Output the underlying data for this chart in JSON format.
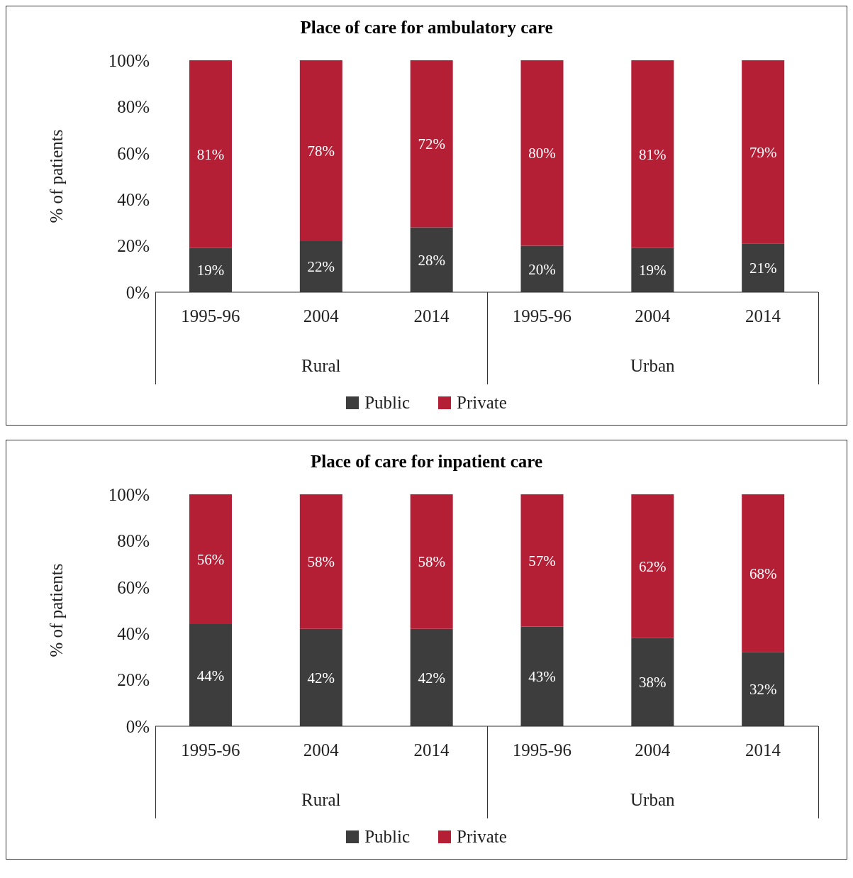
{
  "chart_data": [
    {
      "type": "bar",
      "title": "Place of care for ambulatory care",
      "ylabel": "% of patients",
      "categories": [
        "1995-96",
        "2004",
        "2014",
        "1995-96",
        "2004",
        "2014"
      ],
      "annotations": [
        "Rural",
        "Urban"
      ],
      "stacked": true,
      "legend": "bottom",
      "ylim": [
        0,
        100
      ],
      "yticks": [
        {
          "value": 0,
          "label": "0%"
        },
        {
          "value": 20,
          "label": "20%"
        },
        {
          "value": 40,
          "label": "40%"
        },
        {
          "value": 60,
          "label": "60%"
        },
        {
          "value": 80,
          "label": "80%"
        },
        {
          "value": 100,
          "label": "100%"
        }
      ],
      "series": [
        {
          "name": "Public",
          "color": "#3d3d3d",
          "values": [
            19,
            22,
            28,
            20,
            19,
            21
          ],
          "value_labels": [
            "19%",
            "22%",
            "28%",
            "20%",
            "19%",
            "21%"
          ]
        },
        {
          "name": "Private",
          "color": "#b51f36",
          "values": [
            81,
            78,
            72,
            80,
            81,
            79
          ],
          "value_labels": [
            "81%",
            "78%",
            "72%",
            "80%",
            "81%",
            "79%"
          ]
        }
      ]
    },
    {
      "type": "bar",
      "title": "Place of care for inpatient care",
      "ylabel": "% of patients",
      "categories": [
        "1995-96",
        "2004",
        "2014",
        "1995-96",
        "2004",
        "2014"
      ],
      "annotations": [
        "Rural",
        "Urban"
      ],
      "stacked": true,
      "legend": "bottom",
      "ylim": [
        0,
        100
      ],
      "yticks": [
        {
          "value": 0,
          "label": "0%"
        },
        {
          "value": 20,
          "label": "20%"
        },
        {
          "value": 40,
          "label": "40%"
        },
        {
          "value": 60,
          "label": "60%"
        },
        {
          "value": 80,
          "label": "80%"
        },
        {
          "value": 100,
          "label": "100%"
        }
      ],
      "series": [
        {
          "name": "Public",
          "color": "#3d3d3d",
          "values": [
            44,
            42,
            42,
            43,
            38,
            32
          ],
          "value_labels": [
            "44%",
            "42%",
            "42%",
            "43%",
            "38%",
            "32%"
          ]
        },
        {
          "name": "Private",
          "color": "#b51f36",
          "values": [
            56,
            58,
            58,
            57,
            62,
            68
          ],
          "value_labels": [
            "56%",
            "58%",
            "58%",
            "57%",
            "62%",
            "68%"
          ]
        }
      ]
    }
  ]
}
